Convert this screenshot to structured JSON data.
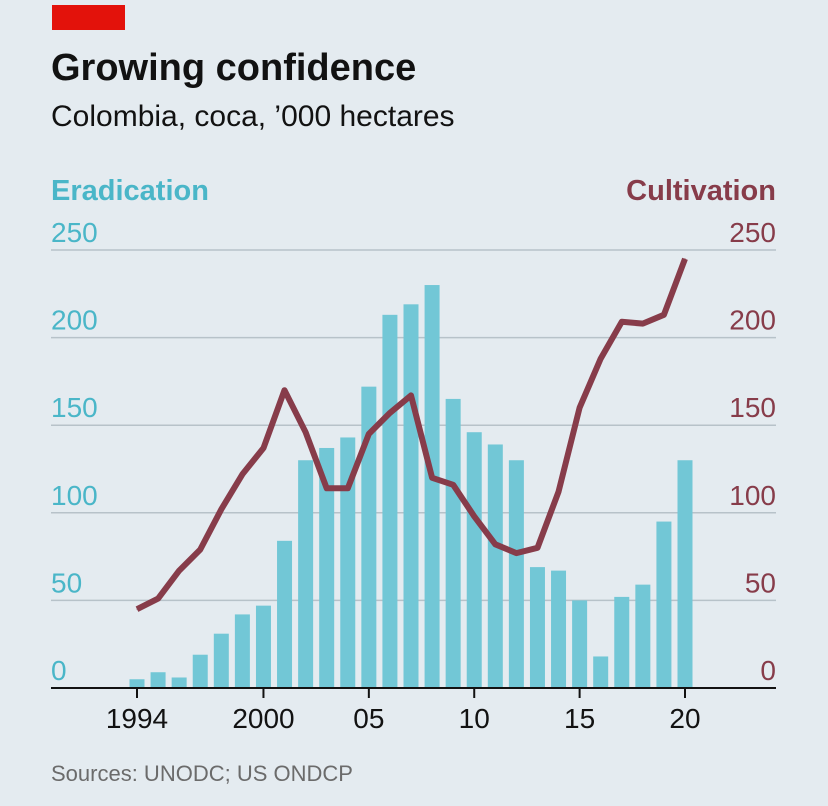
{
  "header": {
    "title": "Growing confidence",
    "subtitle": "Colombia, coca, ’000 hectares"
  },
  "source": "Sources: UNODC; US ONDCP",
  "colors": {
    "background": "#e4ebf0",
    "accent_tag": "#e3120b",
    "eradication": "#72c7d6",
    "eradication_text": "#4ab6c8",
    "cultivation": "#873c4a",
    "grid": "#b7c2c9",
    "axis": "#121212"
  },
  "chart_data": {
    "type": "bar+line",
    "title": "Growing confidence",
    "subtitle": "Colombia, coca, ’000 hectares",
    "left_axis": {
      "label": "Eradication",
      "ylim": [
        0,
        250
      ],
      "ticks": [
        0,
        50,
        100,
        150,
        200,
        250
      ],
      "tick_labels": [
        "0",
        "50",
        "100",
        "150",
        "200",
        "250"
      ]
    },
    "right_axis": {
      "label": "Cultivation",
      "ylim": [
        0,
        250
      ],
      "ticks": [
        0,
        50,
        100,
        150,
        200,
        250
      ],
      "tick_labels": [
        "0",
        "50",
        "100",
        "150",
        "200",
        "250"
      ]
    },
    "x_ticks": [
      {
        "year": 1994,
        "label": "1994"
      },
      {
        "year": 2000,
        "label": "2000"
      },
      {
        "year": 2005,
        "label": "05"
      },
      {
        "year": 2010,
        "label": "10"
      },
      {
        "year": 2015,
        "label": "15"
      },
      {
        "year": 2020,
        "label": "20"
      }
    ],
    "x_range": [
      1990,
      2024
    ],
    "series": [
      {
        "name": "Eradication",
        "type": "bar",
        "axis": "left",
        "years": [
          1994,
          1995,
          1996,
          1997,
          1998,
          1999,
          2000,
          2001,
          2002,
          2003,
          2004,
          2005,
          2006,
          2007,
          2008,
          2009,
          2010,
          2011,
          2012,
          2013,
          2014,
          2015,
          2016,
          2017,
          2018,
          2019,
          2020
        ],
        "values": [
          5,
          9,
          6,
          19,
          31,
          42,
          47,
          84,
          130,
          137,
          143,
          172,
          213,
          219,
          230,
          165,
          146,
          139,
          130,
          69,
          67,
          50,
          18,
          52,
          59,
          95,
          130
        ]
      },
      {
        "name": "Cultivation",
        "type": "line",
        "axis": "right",
        "years": [
          1994,
          1995,
          1996,
          1997,
          1998,
          1999,
          2000,
          2001,
          2002,
          2003,
          2004,
          2005,
          2006,
          2007,
          2008,
          2009,
          2010,
          2011,
          2012,
          2013,
          2014,
          2015,
          2016,
          2017,
          2018,
          2019,
          2020
        ],
        "values": [
          45,
          51,
          67,
          79,
          102,
          122,
          137,
          170,
          146,
          114,
          114,
          145,
          157,
          167,
          120,
          116,
          98,
          82,
          77,
          80,
          112,
          160,
          188,
          209,
          208,
          213,
          245
        ]
      }
    ]
  }
}
